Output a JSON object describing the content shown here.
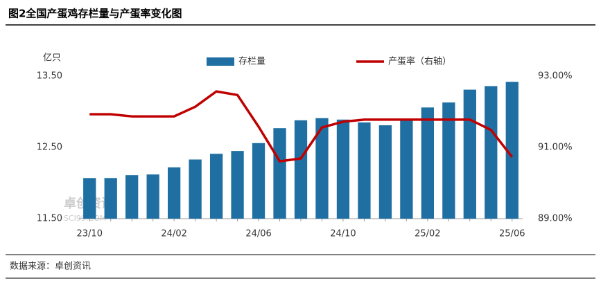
{
  "chart_data": {
    "type": "bar_line",
    "title": "图2全国产蛋鸡存栏量与产蛋率变化图",
    "y_unit": "亿只",
    "source": "数据来源：卓创资讯",
    "watermark": "卓创资讯",
    "watermark_url": "SCI99.COM",
    "categories": [
      "23/10",
      null,
      null,
      null,
      "24/02",
      null,
      null,
      null,
      "24/06",
      null,
      null,
      null,
      "24/10",
      null,
      null,
      null,
      "25/02",
      null,
      null,
      null,
      "25/06"
    ],
    "series": [
      {
        "name": "存栏量",
        "type": "bar",
        "color": "#1f6fa3",
        "values": [
          12.07,
          12.07,
          12.11,
          12.12,
          12.22,
          12.33,
          12.41,
          12.45,
          12.56,
          12.77,
          12.88,
          12.91,
          12.89,
          12.85,
          12.81,
          12.9,
          13.06,
          13.13,
          13.31,
          13.36,
          13.42
        ]
      },
      {
        "name": "产蛋率（右轴）",
        "type": "line",
        "axis": "y2",
        "color": "#c00000",
        "values": [
          91.93,
          91.93,
          91.87,
          91.87,
          91.87,
          92.14,
          92.57,
          92.47,
          91.58,
          90.61,
          90.69,
          91.56,
          91.72,
          91.78,
          91.78,
          91.78,
          91.78,
          91.78,
          91.78,
          91.49,
          90.73
        ]
      }
    ],
    "ylim": [
      11.5,
      13.5
    ],
    "yticks": [
      {
        "value": 11.5,
        "label": "11.50"
      },
      {
        "value": 12.5,
        "label": "12.50"
      },
      {
        "value": 13.5,
        "label": "13.50"
      }
    ],
    "y2lim": [
      89,
      93
    ],
    "y2ticks": [
      {
        "value": 89,
        "label": "89.00%"
      },
      {
        "value": 91,
        "label": "91.00%"
      },
      {
        "value": 93,
        "label": "93.00%"
      }
    ],
    "grid": false
  }
}
